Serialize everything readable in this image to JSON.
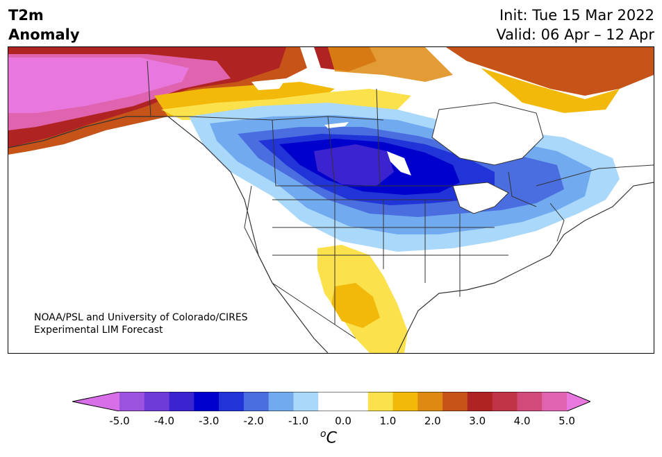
{
  "title": {
    "left_line1": "T2m",
    "left_line2": "Anomaly",
    "init": "Init: Tue 15 Mar 2022",
    "valid": "Valid: 06 Apr – 12 Apr"
  },
  "credit": {
    "line1": "NOAA/PSL and University of Colorado/CIRES",
    "line2": "Experimental LIM Forecast"
  },
  "colorbar": {
    "ticks": [
      "-5.0",
      "-4.0",
      "-3.0",
      "-2.0",
      "-1.0",
      "0.0",
      "1.0",
      "2.0",
      "3.0",
      "4.0",
      "5.0"
    ],
    "unit_base": "C",
    "unit_sup": "o",
    "range": [
      -5.0,
      5.0
    ],
    "extend": "both",
    "colors": [
      "#d86fe8",
      "#9a52df",
      "#6e3ad8",
      "#3b23d0",
      "#0000cc",
      "#2134d8",
      "#4a6ee0",
      "#72aaf0",
      "#aad8fa",
      "#ffffff",
      "#ffffff",
      "#fbe14c",
      "#f2b90b",
      "#de8a12",
      "#c65318",
      "#b02323",
      "#c13347",
      "#d14a7a",
      "#e063b0",
      "#e878de"
    ]
  }
}
